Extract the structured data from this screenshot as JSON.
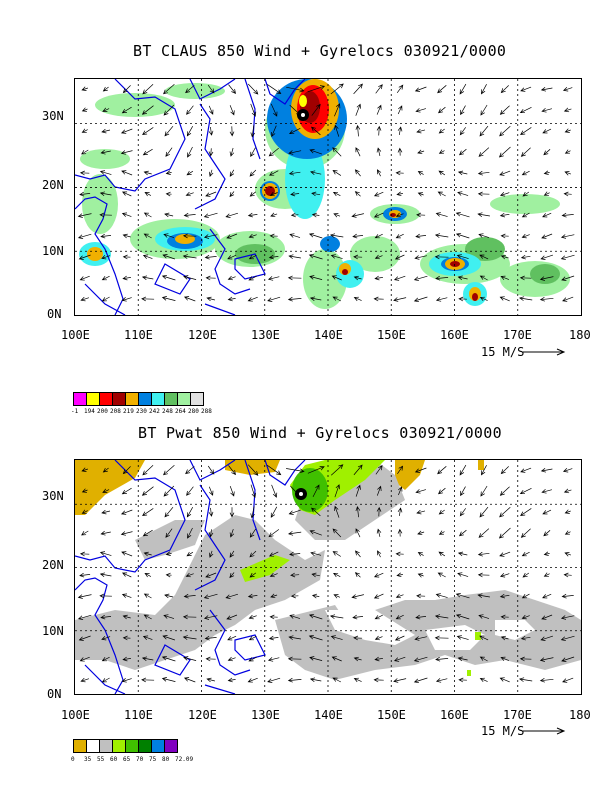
{
  "panels": [
    {
      "title": "BT CLAUS 850 Wind + Gyrelocs 030921/0000",
      "lat_labels": [
        "30N",
        "20N",
        "10N",
        "0N"
      ],
      "lon_labels": [
        "100E",
        "110E",
        "120E",
        "130E",
        "140E",
        "150E",
        "160E",
        "170E",
        "180"
      ],
      "wind_scale": "15 M/S",
      "legend_colors": [
        "#ff00ff",
        "#ffff00",
        "#ff0000",
        "#a00000",
        "#f0b000",
        "#0080e0",
        "#40f0f0",
        "#60c060",
        "#a0f0a0",
        "#e0e0e0"
      ],
      "legend_labels": [
        "-1",
        "194",
        "200",
        "208",
        "219",
        "230",
        "242",
        "248",
        "264",
        "280",
        "288"
      ]
    },
    {
      "title": "BT Pwat 850 Wind + Gyrelocs 030921/0000",
      "lat_labels": [
        "30N",
        "20N",
        "10N",
        "0N"
      ],
      "lon_labels": [
        "100E",
        "110E",
        "120E",
        "130E",
        "140E",
        "150E",
        "160E",
        "170E",
        "180"
      ],
      "wind_scale": "15 M/S",
      "legend_colors": [
        "#e0b000",
        "#ffffff",
        "#c0c0c0",
        "#a0f000",
        "#40c000",
        "#008000",
        "#0080e0",
        "#8000c0"
      ],
      "legend_labels": [
        "0",
        "35",
        "55",
        "60",
        "65",
        "70",
        "75",
        "80",
        "72.09"
      ]
    }
  ]
}
